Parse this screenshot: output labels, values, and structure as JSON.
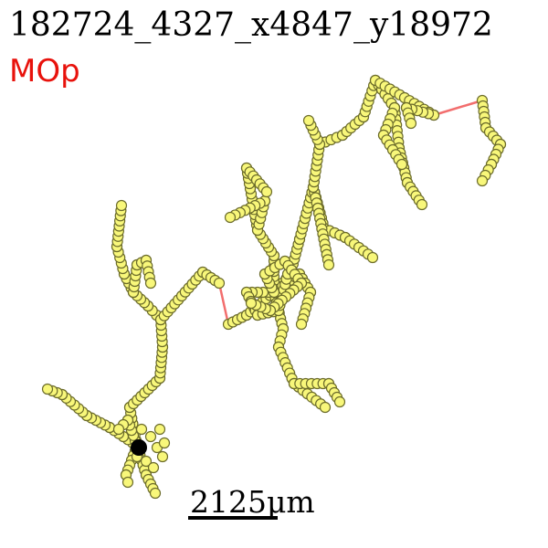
{
  "header": {
    "title": "182724_4327_x4847_y18972",
    "region_label": "MOp"
  },
  "scalebar": {
    "label": "2125μm"
  },
  "colors": {
    "edge": "#f26e6e",
    "node_fill": "#f8f77a",
    "node_stroke": "#6b6b2a",
    "soma": "#000000",
    "region_label": "#e8120c"
  },
  "icons": {
    "soma": "filled-circle"
  }
}
